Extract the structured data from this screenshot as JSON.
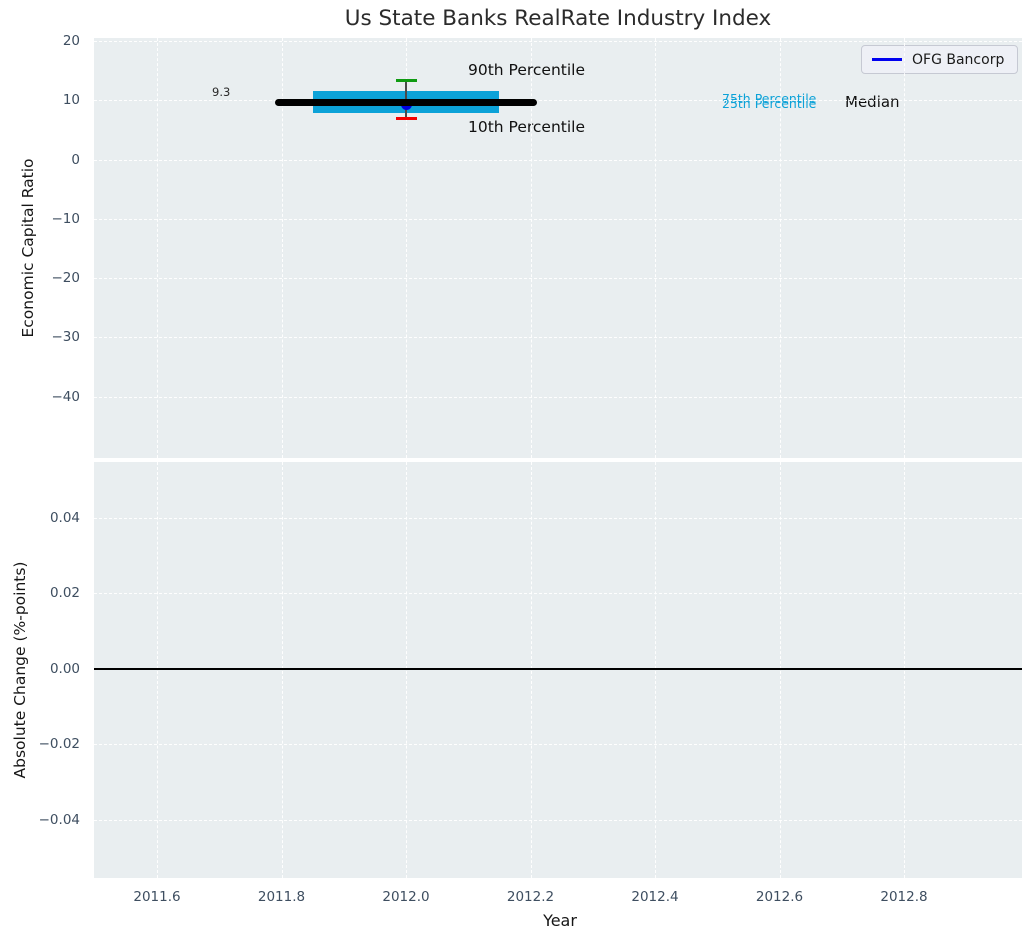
{
  "figure": {
    "title": "Us State Banks RealRate Industry Index",
    "plot_background": "#e9eef0",
    "grid_color": "#ffffff",
    "tick_color": "#3e4e60"
  },
  "legend": {
    "label": "OFG Bancorp",
    "line_color": "#0000f0",
    "position": "upper right"
  },
  "top_plot": {
    "ylabel": "Economic Capital Ratio",
    "ytick_labels": [
      "20",
      "10",
      "0",
      "−10",
      "−20",
      "−30",
      "−40"
    ],
    "annotations": {
      "p90": "90th Percentile",
      "p10": "10th Percentile",
      "p75": "75th Percentile",
      "p25": "25th Percentile",
      "median": "Median",
      "company_value": "9.3"
    }
  },
  "bottom_plot": {
    "ylabel": "Absolute Change (%-points)",
    "xlabel": "Year",
    "ytick_labels": [
      "0.04",
      "0.02",
      "0.00",
      "−0.02",
      "−0.04"
    ],
    "xtick_labels": [
      "2011.6",
      "2011.8",
      "2012.0",
      "2012.2",
      "2012.4",
      "2012.6",
      "2012.8"
    ]
  },
  "chart_data": [
    {
      "type": "scatter",
      "title": "Us State Banks RealRate Industry Index",
      "xlabel": "Year",
      "ylabel": "Economic Capital Ratio",
      "xlim": [
        2011.5,
        2012.99
      ],
      "ylim": [
        -50.4,
        20.2
      ],
      "xticks": [
        2011.6,
        2011.8,
        2012.0,
        2012.2,
        2012.4,
        2012.6,
        2012.8
      ],
      "yticks": [
        20,
        10,
        0,
        -10,
        -20,
        -30,
        -40
      ],
      "grid": true,
      "legend_position": "upper right",
      "series": [
        {
          "name": "OFG Bancorp",
          "x": [
            2012.0
          ],
          "values": [
            9.3
          ],
          "marker_color": "#0000e0",
          "label": "9.3"
        }
      ],
      "industry_percentiles": {
        "year": 2012.0,
        "p90": 13.4,
        "p75": 11.6,
        "median": 9.6,
        "p25": 7.9,
        "p10": 7.0,
        "median_line_xspan": [
          2011.79,
          2012.21
        ],
        "iqr_box_xspan": [
          2011.85,
          2012.15
        ],
        "colors": {
          "iqr_box": "#0ca2d8",
          "median_line": "#000000",
          "p90_cap": "#0f9b12",
          "p10_cap": "#f50000",
          "errorbar_line": "#4a4a4a"
        }
      }
    },
    {
      "type": "line",
      "xlabel": "Year",
      "ylabel": "Absolute Change (%-points)",
      "xlim": [
        2011.5,
        2012.99
      ],
      "ylim": [
        -0.056,
        0.055
      ],
      "xticks": [
        2011.6,
        2011.8,
        2012.0,
        2012.2,
        2012.4,
        2012.6,
        2012.8
      ],
      "yticks": [
        0.04,
        0.02,
        0.0,
        -0.02,
        -0.04
      ],
      "grid": true,
      "zero_line": 0.0,
      "series": []
    }
  ]
}
